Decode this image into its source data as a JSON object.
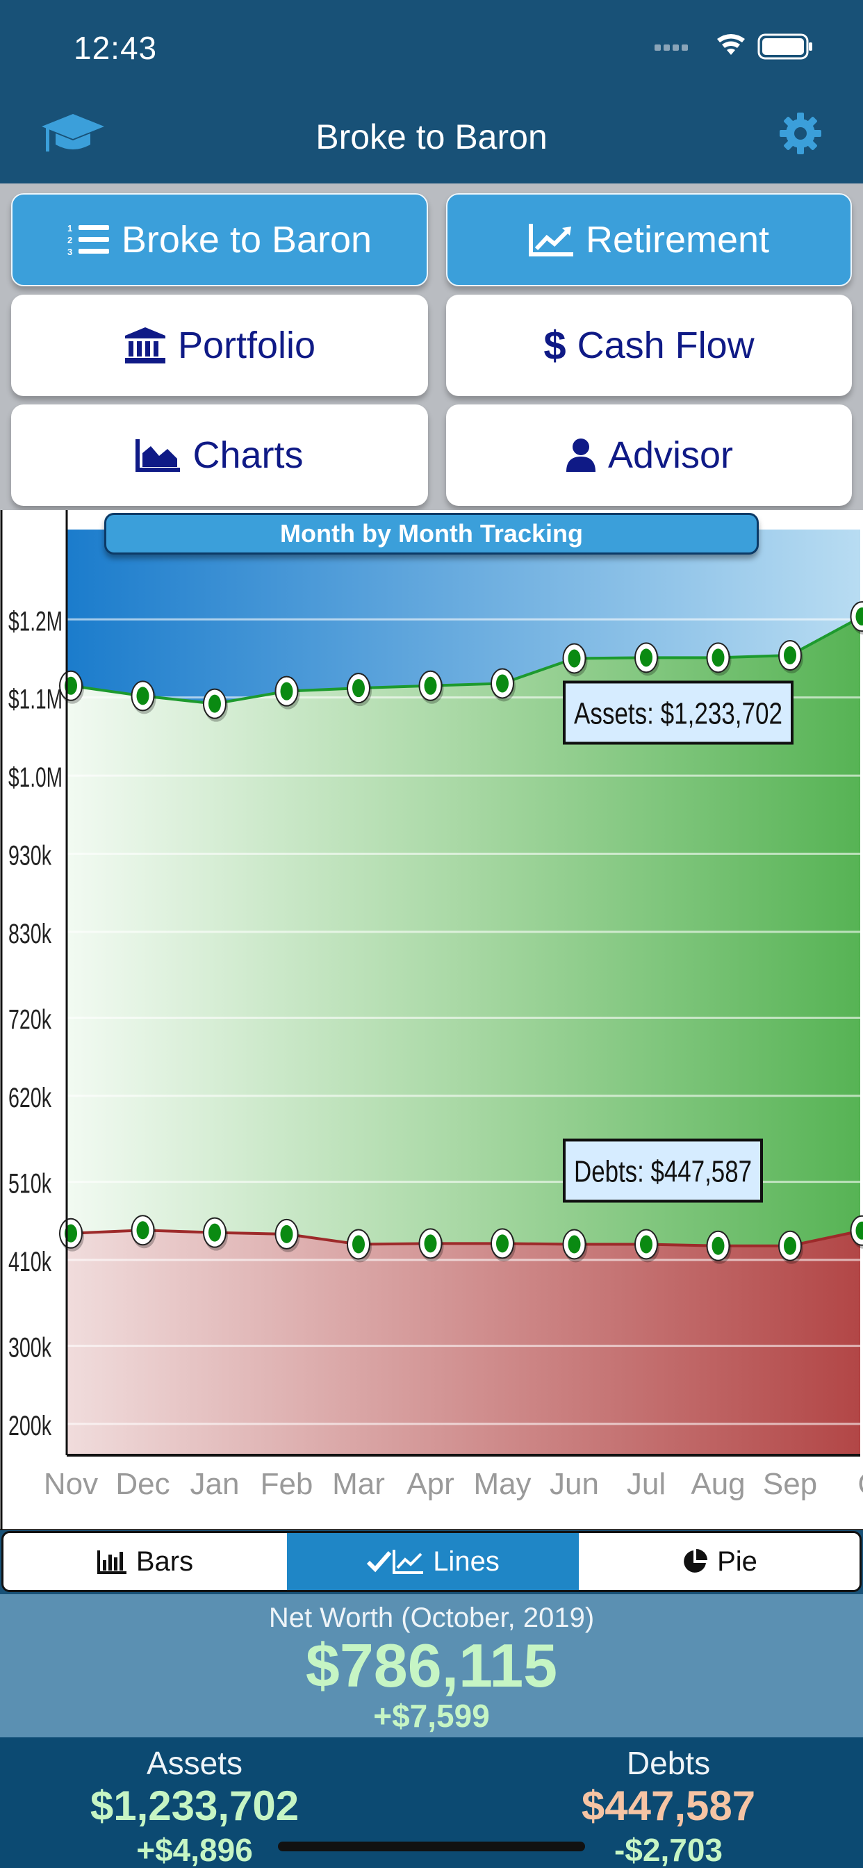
{
  "status": {
    "time": "12:43"
  },
  "nav": {
    "title": "Broke to Baron"
  },
  "tiles": {
    "broke_to_baron": "Broke to Baron",
    "retirement": "Retirement",
    "portfolio": "Portfolio",
    "cash_flow": "Cash Flow",
    "charts": "Charts",
    "advisor": "Advisor"
  },
  "chart_section": {
    "title": "Month by Month Tracking"
  },
  "chart_data": {
    "type": "area",
    "x": [
      "Nov",
      "Dec",
      "Jan",
      "Feb",
      "Mar",
      "Apr",
      "May",
      "Jun",
      "Jul",
      "Aug",
      "Sep",
      "Oct"
    ],
    "x_tick_labels": [
      "Nov",
      "Dec",
      "Jan",
      "Feb",
      "Mar",
      "Apr",
      "May",
      "Jun",
      "Jul",
      "Aug",
      "Sep",
      "O"
    ],
    "series": [
      {
        "values": [
          1145000,
          1132000,
          1122000,
          1138000,
          1142000,
          1145000,
          1148000,
          1180000,
          1181000,
          1181000,
          1184000,
          1233702
        ],
        "color": "#1d9a2e"
      },
      {
        "values": [
          444000,
          448000,
          445000,
          443000,
          430000,
          431000,
          431000,
          430000,
          430000,
          428000,
          428000,
          447587
        ],
        "color": "#9d2a2a"
      }
    ],
    "y_ticks": [
      {
        "value": 200000,
        "label": "200k"
      },
      {
        "value": 300000,
        "label": "300k"
      },
      {
        "value": 410000,
        "label": "410k"
      },
      {
        "value": 510000,
        "label": "510k"
      },
      {
        "value": 620000,
        "label": "620k"
      },
      {
        "value": 720000,
        "label": "720k"
      },
      {
        "value": 830000,
        "label": "830k"
      },
      {
        "value": 930000,
        "label": "930k"
      },
      {
        "value": 1030000,
        "label": "$1.0M"
      },
      {
        "value": 1130000,
        "label": "$1.1M"
      },
      {
        "value": 1230000,
        "label": "$1.2M"
      }
    ],
    "ylim": [
      160000,
      1345000
    ],
    "annotations": [
      {
        "text": "Assets: $1,233,702",
        "series": 0
      },
      {
        "text": "Debts: $447,587",
        "series": 1
      }
    ],
    "colors": {
      "assets_fill_top": "#2a8fd6",
      "assets_area": "#5cb85c",
      "debts_area": "#b54a4a"
    },
    "grid": true,
    "legend": "none"
  },
  "segments": {
    "bars": "Bars",
    "lines": "Lines",
    "pie": "Pie",
    "active": "lines"
  },
  "net_worth": {
    "label": "Net Worth (October, 2019)",
    "value": "$786,115",
    "change": "+$7,599"
  },
  "assets": {
    "label": "Assets",
    "value": "$1,233,702",
    "change": "+$4,896"
  },
  "debts": {
    "label": "Debts",
    "value": "$447,587",
    "change": "-$2,703"
  },
  "colors": {
    "positive": "#c6f5c4",
    "debts_value": "#f6c4a4",
    "active_segment": "#1f86c6",
    "tile_blue": "#3b9fda",
    "nav_bg": "#185177"
  }
}
